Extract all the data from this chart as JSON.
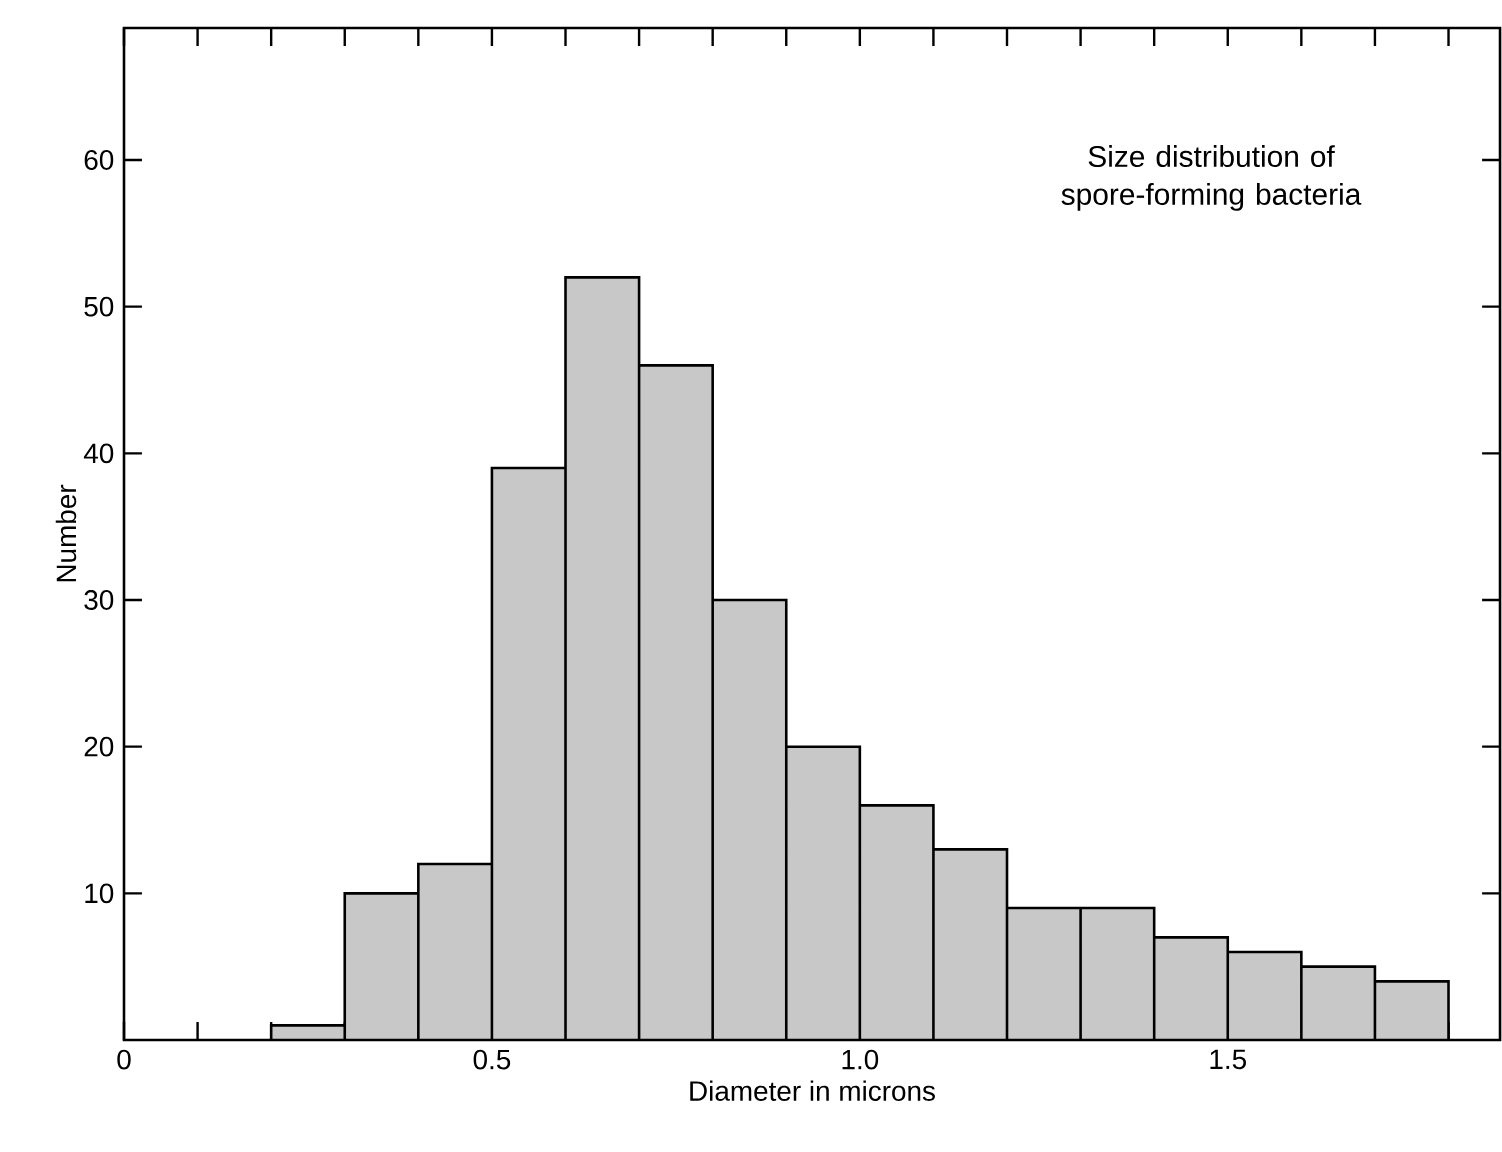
{
  "chart_data": {
    "type": "histogram",
    "title": "Size distribution of spore-forming bacteria",
    "xlabel": "Diameter in microns",
    "ylabel": "Number",
    "bins": [
      0.2,
      0.3,
      0.4,
      0.5,
      0.6,
      0.7,
      0.8,
      0.9,
      1.0,
      1.1,
      1.2,
      1.3,
      1.4,
      1.5,
      1.6,
      1.7,
      1.8
    ],
    "values": [
      1,
      10,
      12,
      39,
      52,
      46,
      30,
      20,
      16,
      13,
      9,
      9,
      7,
      6,
      5,
      4
    ],
    "color": "#c8c8c8",
    "xlim": [
      0,
      1.87
    ],
    "ylim": [
      0,
      69
    ],
    "xticks": [
      0,
      {
        "value": 0.1,
        "label": null
      },
      {
        "value": 0.2,
        "label": null
      },
      {
        "value": 0.3,
        "label": null
      },
      {
        "value": 0.4,
        "label": null
      },
      0.5,
      {
        "value": 0.6,
        "label": null
      },
      {
        "value": 0.7,
        "label": null
      },
      {
        "value": 0.8,
        "label": null
      },
      {
        "value": 0.9,
        "label": null
      },
      {
        "value": 1.0,
        "label": "1.0"
      },
      {
        "value": 1.1,
        "label": null
      },
      {
        "value": 1.2,
        "label": null
      },
      {
        "value": 1.3,
        "label": null
      },
      {
        "value": 1.4,
        "label": null
      },
      1.5,
      {
        "value": 1.6,
        "label": null
      },
      {
        "value": 1.7,
        "label": null
      },
      {
        "value": 1.8,
        "label": null
      }
    ],
    "yticks": [
      10,
      20,
      30,
      40,
      50,
      60
    ]
  }
}
